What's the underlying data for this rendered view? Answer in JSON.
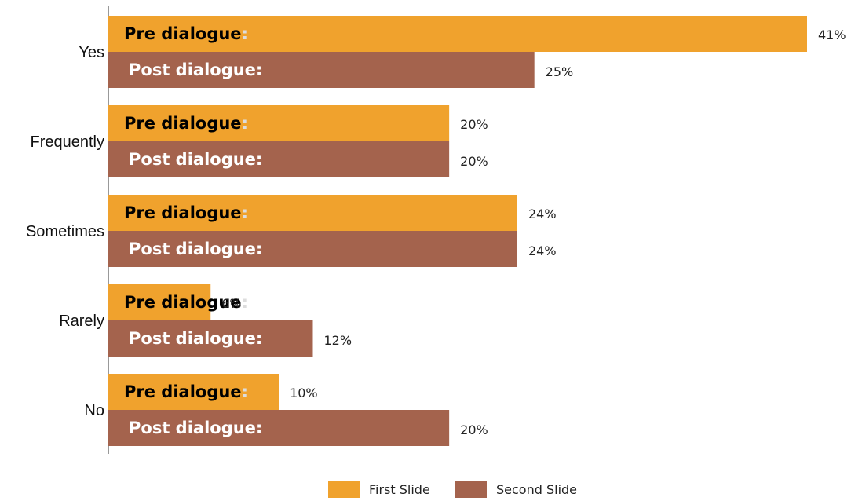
{
  "chart_data": {
    "type": "bar",
    "orientation": "horizontal",
    "categories": [
      "Yes",
      "Frequently",
      "Sometimes",
      "Rarely",
      "No"
    ],
    "series": [
      {
        "name": "First Slide",
        "bar_text": "Pre dialogue",
        "values": [
          41,
          20,
          24,
          6,
          10
        ],
        "value_labels": [
          "41%",
          "20%",
          "24%",
          "6%",
          "10%"
        ],
        "color": "#F0A22D"
      },
      {
        "name": "Second Slide",
        "bar_text": "Post dialogue",
        "values": [
          25,
          20,
          24,
          12,
          20
        ],
        "value_labels": [
          "25%",
          "20%",
          "24%",
          "12%",
          "20%"
        ],
        "color": "#A4634D"
      }
    ],
    "xlim": [
      0,
      41
    ],
    "grid": false,
    "legend_position": "bottom-center",
    "colon_color": "#DDDDDD"
  },
  "legend": {
    "items": [
      {
        "label": "First Slide",
        "color": "#F0A22D"
      },
      {
        "label": "Second Slide",
        "color": "#A4634D"
      }
    ]
  }
}
